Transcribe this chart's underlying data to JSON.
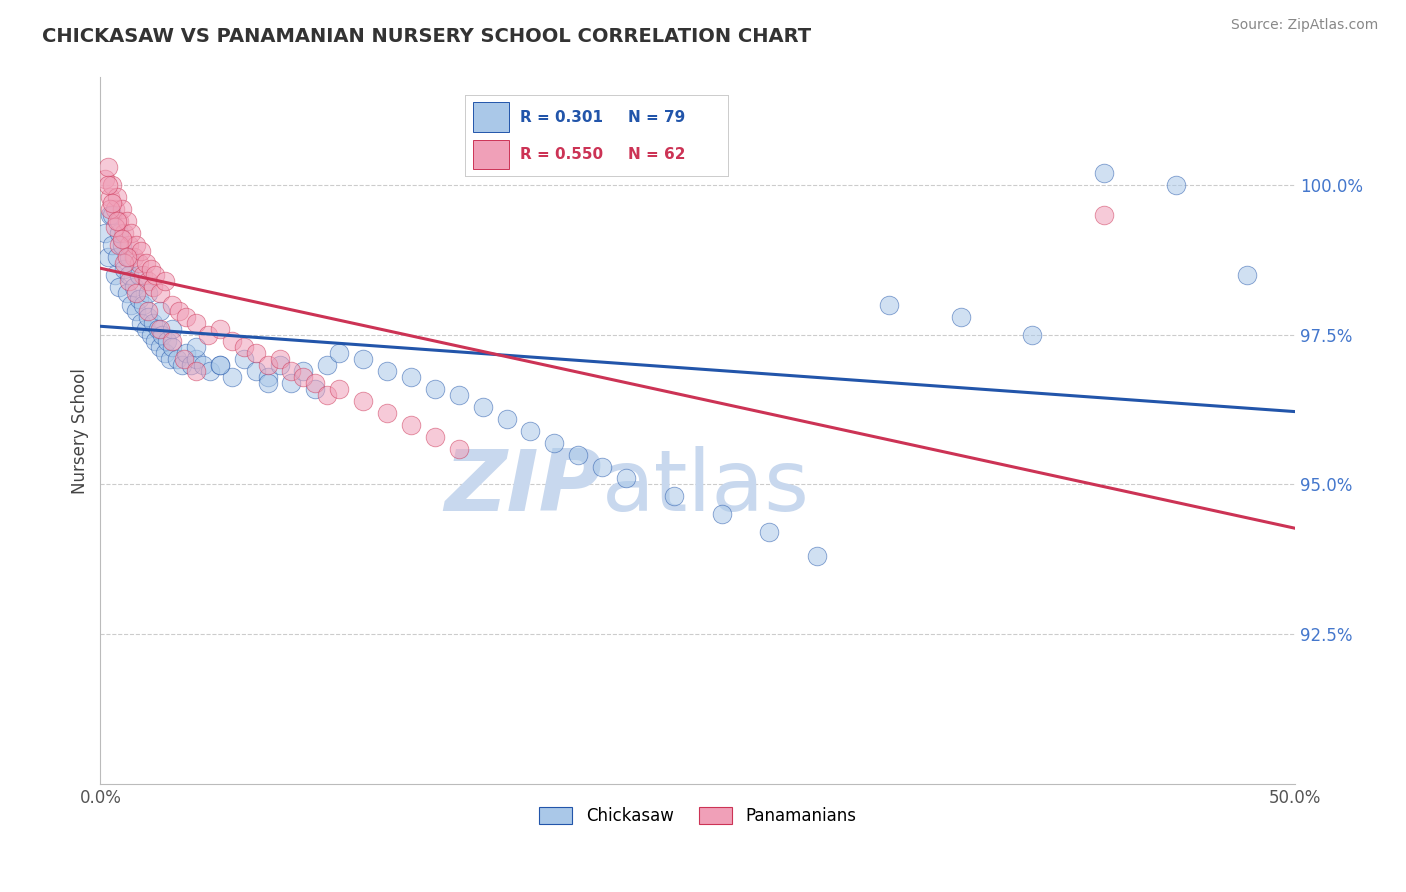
{
  "title": "CHICKASAW VS PANAMANIAN NURSERY SCHOOL CORRELATION CHART",
  "source": "Source: ZipAtlas.com",
  "ylabel_label": "Nursery School",
  "legend_label1": "Chickasaw",
  "legend_label2": "Panamanians",
  "R1": 0.301,
  "N1": 79,
  "R2": 0.55,
  "N2": 62,
  "xlim": [
    0.0,
    50.0
  ],
  "ylim": [
    90.0,
    101.8
  ],
  "yticks": [
    92.5,
    95.0,
    97.5,
    100.0
  ],
  "ytick_labels": [
    "92.5%",
    "95.0%",
    "97.5%",
    "100.0%"
  ],
  "xticks": [
    0.0,
    10.0,
    20.0,
    30.0,
    40.0,
    50.0
  ],
  "xtick_labels": [
    "0.0%",
    "",
    "",
    "",
    "",
    "50.0%"
  ],
  "color_blue": "#aac8e8",
  "color_pink": "#f0a0b8",
  "line_blue": "#2255aa",
  "line_pink": "#cc3355",
  "grid_color": "#cccccc",
  "background_color": "#ffffff",
  "watermark_zip": "ZIP",
  "watermark_atlas": "atlas",
  "watermark_color_zip": "#c8d8ee",
  "watermark_color_atlas": "#c8d8ee",
  "scatter_blue_x": [
    0.2,
    0.3,
    0.4,
    0.5,
    0.6,
    0.7,
    0.8,
    0.9,
    1.0,
    1.1,
    1.2,
    1.3,
    1.4,
    1.5,
    1.6,
    1.7,
    1.8,
    1.9,
    2.0,
    2.1,
    2.2,
    2.3,
    2.4,
    2.5,
    2.6,
    2.7,
    2.8,
    2.9,
    3.0,
    3.2,
    3.4,
    3.6,
    3.8,
    4.0,
    4.3,
    4.6,
    5.0,
    5.5,
    6.0,
    6.5,
    7.0,
    7.5,
    8.0,
    8.5,
    9.0,
    9.5,
    10.0,
    11.0,
    12.0,
    13.0,
    14.0,
    15.0,
    16.0,
    17.0,
    18.0,
    19.0,
    20.0,
    21.0,
    22.0,
    24.0,
    26.0,
    28.0,
    30.0,
    33.0,
    36.0,
    39.0,
    42.0,
    45.0,
    48.0,
    0.5,
    0.8,
    1.2,
    1.6,
    2.0,
    2.5,
    3.0,
    4.0,
    5.0,
    7.0
  ],
  "scatter_blue_y": [
    99.2,
    98.8,
    99.5,
    99.0,
    98.5,
    98.8,
    98.3,
    99.0,
    98.6,
    98.2,
    98.5,
    98.0,
    98.3,
    97.9,
    98.1,
    97.7,
    98.0,
    97.6,
    97.8,
    97.5,
    97.7,
    97.4,
    97.6,
    97.3,
    97.5,
    97.2,
    97.4,
    97.1,
    97.3,
    97.1,
    97.0,
    97.2,
    97.0,
    97.1,
    97.0,
    96.9,
    97.0,
    96.8,
    97.1,
    96.9,
    96.8,
    97.0,
    96.7,
    96.9,
    96.6,
    97.0,
    97.2,
    97.1,
    96.9,
    96.8,
    96.6,
    96.5,
    96.3,
    96.1,
    95.9,
    95.7,
    95.5,
    95.3,
    95.1,
    94.8,
    94.5,
    94.2,
    93.8,
    98.0,
    97.8,
    97.5,
    100.2,
    100.0,
    98.5,
    99.5,
    99.2,
    98.8,
    98.5,
    98.2,
    97.9,
    97.6,
    97.3,
    97.0,
    96.7
  ],
  "scatter_pink_x": [
    0.2,
    0.3,
    0.4,
    0.5,
    0.6,
    0.7,
    0.8,
    0.9,
    1.0,
    1.1,
    1.2,
    1.3,
    1.4,
    1.5,
    1.6,
    1.7,
    1.8,
    1.9,
    2.0,
    2.1,
    2.2,
    2.3,
    2.5,
    2.7,
    3.0,
    3.3,
    3.6,
    4.0,
    4.5,
    5.0,
    5.5,
    6.0,
    6.5,
    7.0,
    7.5,
    8.0,
    8.5,
    9.0,
    9.5,
    10.0,
    11.0,
    12.0,
    13.0,
    14.0,
    15.0,
    0.4,
    0.6,
    0.8,
    1.0,
    1.2,
    1.5,
    2.0,
    2.5,
    3.0,
    3.5,
    4.0,
    0.3,
    0.5,
    0.7,
    0.9,
    1.1,
    42.0
  ],
  "scatter_pink_y": [
    100.1,
    100.3,
    99.8,
    100.0,
    99.6,
    99.8,
    99.4,
    99.6,
    99.2,
    99.4,
    99.0,
    99.2,
    98.8,
    99.0,
    98.7,
    98.9,
    98.5,
    98.7,
    98.4,
    98.6,
    98.3,
    98.5,
    98.2,
    98.4,
    98.0,
    97.9,
    97.8,
    97.7,
    97.5,
    97.6,
    97.4,
    97.3,
    97.2,
    97.0,
    97.1,
    96.9,
    96.8,
    96.7,
    96.5,
    96.6,
    96.4,
    96.2,
    96.0,
    95.8,
    95.6,
    99.6,
    99.3,
    99.0,
    98.7,
    98.4,
    98.2,
    97.9,
    97.6,
    97.4,
    97.1,
    96.9,
    100.0,
    99.7,
    99.4,
    99.1,
    98.8,
    99.5
  ]
}
